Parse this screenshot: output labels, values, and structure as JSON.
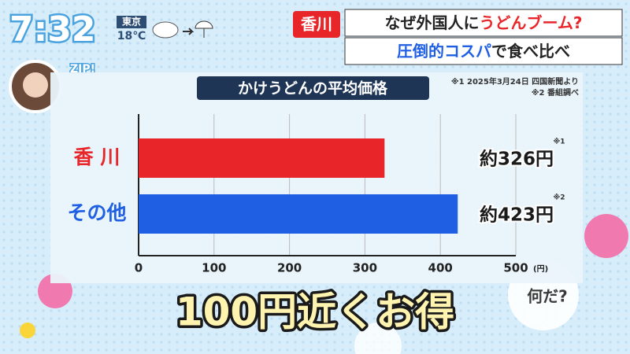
{
  "overlay": {
    "clock": "7:32",
    "city": "東京",
    "temp": "18℃",
    "logo": "ZIP!",
    "tag": "香川",
    "headline1": [
      "なぜ外国人に",
      "うどんブーム?"
    ],
    "headline2": [
      "圧倒的コスパ",
      "で食べ比べ"
    ],
    "caption": "100円近くお得",
    "corner": "何だ?"
  },
  "chart_data": {
    "type": "bar",
    "orientation": "horizontal",
    "title": "かけうどんの平均価格",
    "notes": [
      "※1 2025年3月24日 四国新聞より",
      "※2 番組調べ"
    ],
    "categories": [
      "香 川",
      "その他"
    ],
    "values": [
      326,
      423
    ],
    "value_labels": [
      "約326円",
      "約423円"
    ],
    "value_notes": [
      "※1",
      "※2"
    ],
    "colors": [
      "#e8262a",
      "#1f5fe3"
    ],
    "xlim": [
      0,
      500
    ],
    "xticks": [
      0,
      100,
      200,
      300,
      400,
      500
    ],
    "x_unit": "(円)",
    "grid": true
  }
}
